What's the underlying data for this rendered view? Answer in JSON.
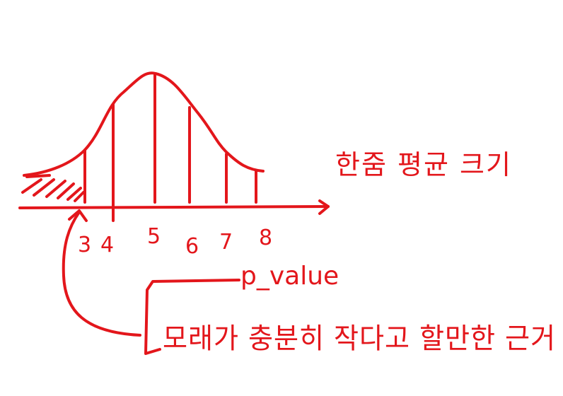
{
  "ink_color": "#e3161b",
  "background_color": "#ffffff",
  "axis": {
    "ticks": [
      "3",
      "4",
      "5",
      "6",
      "7",
      "8"
    ]
  },
  "distribution_label": "한줌 평균 크기",
  "pvalue_label": "p_value",
  "note": "모래가 충분히 작다고 할만한 근거"
}
